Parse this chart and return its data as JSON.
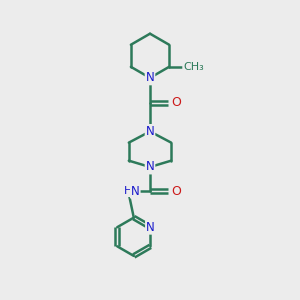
{
  "bg_color": "#ececec",
  "bond_color": "#2d7a5a",
  "N_color": "#1a1acc",
  "O_color": "#cc1a1a",
  "line_width": 1.8,
  "font_size": 8.5,
  "fig_size": [
    3.0,
    3.0
  ],
  "dpi": 100,
  "xlim": [
    0,
    10
  ],
  "ylim": [
    0,
    10
  ]
}
